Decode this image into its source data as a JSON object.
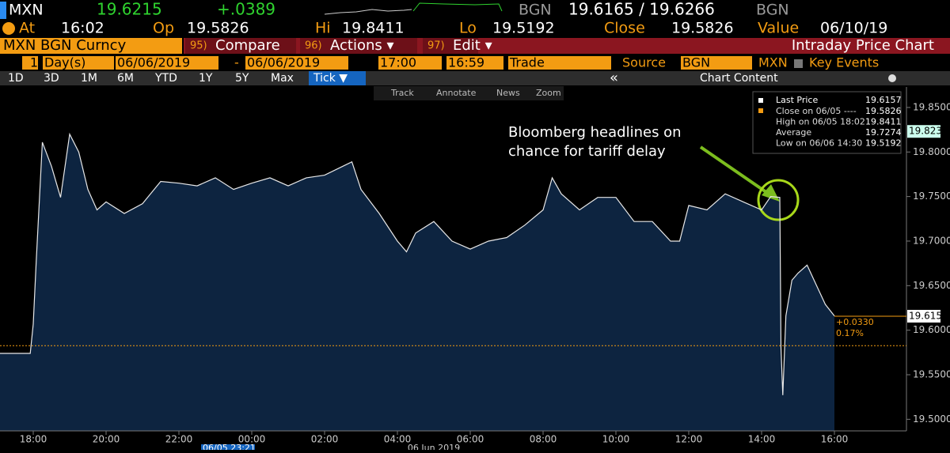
{
  "header": {
    "ticker": "MXN",
    "last": "19.6215",
    "change": "+.0389",
    "source": "BGN",
    "bid_ask": "19.6165 / 19.6266",
    "source2": "BGN"
  },
  "stats": {
    "at_label": "At",
    "at": "16:02",
    "op_label": "Op",
    "op": "19.5826",
    "hi_label": "Hi",
    "hi": "19.8411",
    "lo_label": "Lo",
    "lo": "19.5192",
    "close_label": "Close",
    "close": "19.5826",
    "value_label": "Value",
    "value": "06/10/19"
  },
  "menu": {
    "security": "MXN BGN Curncy",
    "items": [
      {
        "num": "95)",
        "label": "Compare"
      },
      {
        "num": "96)",
        "label": "Actions ▾"
      },
      {
        "num": "97)",
        "label": "Edit ▾"
      }
    ],
    "title": "Intraday Price Chart"
  },
  "params": {
    "period": "1",
    "period_unit": "Day(s)",
    "start_date": "06/06/2019",
    "dash": "-",
    "end_date": "06/06/2019",
    "start_time": "17:00",
    "end_time": "16:59",
    "field": "Trade",
    "source_label": "Source",
    "source": "BGN",
    "currency": "MXN",
    "events": "Key Events"
  },
  "ranges": {
    "items": [
      "1D",
      "3D",
      "1M",
      "6M",
      "YTD",
      "1Y",
      "5Y",
      "Max",
      "Tick ▼"
    ],
    "collapse": "«",
    "content": "Chart Content"
  },
  "toolbar": [
    "Track",
    "Annotate",
    "News",
    "Zoom"
  ],
  "legend": [
    {
      "label": "Close on 06/05 ----",
      "value": "19.5826"
    },
    {
      "label": "High on 06/05 18:02",
      "value": "19.8411"
    },
    {
      "label": "Average",
      "value": "19.7274"
    },
    {
      "label": "Low on 06/06 14:30",
      "value": "19.5192"
    }
  ],
  "annotation": {
    "lines": [
      "Bloomberg headlines on",
      "chance for tariff delay"
    ]
  },
  "footer": {
    "cursor_time": "06/05 23:21",
    "date": "06 Jun 2019"
  },
  "chart_data": {
    "type": "area",
    "ylim": [
      19.487,
      19.873
    ],
    "yticks": [
      {
        "value": 19.85,
        "label": "19.8500"
      },
      {
        "value": 19.8,
        "label": "19.8000"
      },
      {
        "value": 19.75,
        "label": "19.7500"
      },
      {
        "value": 19.7,
        "label": "19.7000"
      },
      {
        "value": 19.65,
        "label": "19.6500"
      },
      {
        "value": 19.6,
        "label": "19.6000"
      },
      {
        "value": 19.55,
        "label": "19.5500"
      },
      {
        "value": 19.5,
        "label": "19.5000"
      }
    ],
    "xticks": [
      "18:00",
      "20:00",
      "22:00",
      "00:00",
      "02:00",
      "04:00",
      "06:00",
      "08:00",
      "10:00",
      "12:00",
      "14:00",
      "16:00"
    ],
    "series": [
      {
        "name": "Last Price",
        "legend_value": "19.6157",
        "color": "#e8e8e8",
        "x": [
          "17:00",
          "17:55",
          "18:00",
          "18:05",
          "18:15",
          "18:30",
          "18:45",
          "19:00",
          "19:15",
          "19:30",
          "19:45",
          "20:00",
          "20:30",
          "21:00",
          "21:30",
          "22:00",
          "22:30",
          "23:00",
          "23:30",
          "00:00",
          "00:30",
          "01:00",
          "01:30",
          "02:00",
          "02:30",
          "02:45",
          "03:00",
          "03:30",
          "04:00",
          "04:15",
          "04:30",
          "05:00",
          "05:30",
          "06:00",
          "06:30",
          "07:00",
          "07:30",
          "08:00",
          "08:15",
          "08:30",
          "09:00",
          "09:30",
          "10:00",
          "10:30",
          "11:00",
          "11:30",
          "11:45",
          "12:00",
          "12:30",
          "13:00",
          "13:30",
          "14:00",
          "14:15",
          "14:30",
          "14:32",
          "14:35",
          "14:40",
          "14:50",
          "15:00",
          "15:15",
          "15:30",
          "15:45",
          "16:00"
        ],
        "values": [
          19.574,
          19.574,
          19.607,
          19.678,
          19.811,
          19.784,
          19.749,
          19.82,
          19.8,
          19.758,
          19.735,
          19.744,
          19.731,
          19.742,
          19.767,
          19.765,
          19.762,
          19.771,
          19.758,
          19.765,
          19.771,
          19.762,
          19.771,
          19.774,
          19.784,
          19.789,
          19.758,
          19.731,
          19.7,
          19.688,
          19.709,
          19.722,
          19.7,
          19.691,
          19.7,
          19.704,
          19.718,
          19.735,
          19.771,
          19.753,
          19.735,
          19.749,
          19.749,
          19.722,
          19.722,
          19.7,
          19.7,
          19.74,
          19.735,
          19.753,
          19.744,
          19.735,
          19.75,
          19.749,
          19.58,
          19.527,
          19.616,
          19.656,
          19.664,
          19.673,
          19.651,
          19.629,
          19.616
        ]
      }
    ],
    "prev_close": 19.5826,
    "last_value": 19.6157,
    "last_label": "19.6157",
    "marker_value": 19.8231,
    "marker_label": "19.8231",
    "change_abs": "+0.0330",
    "change_pct": "0.17%"
  }
}
